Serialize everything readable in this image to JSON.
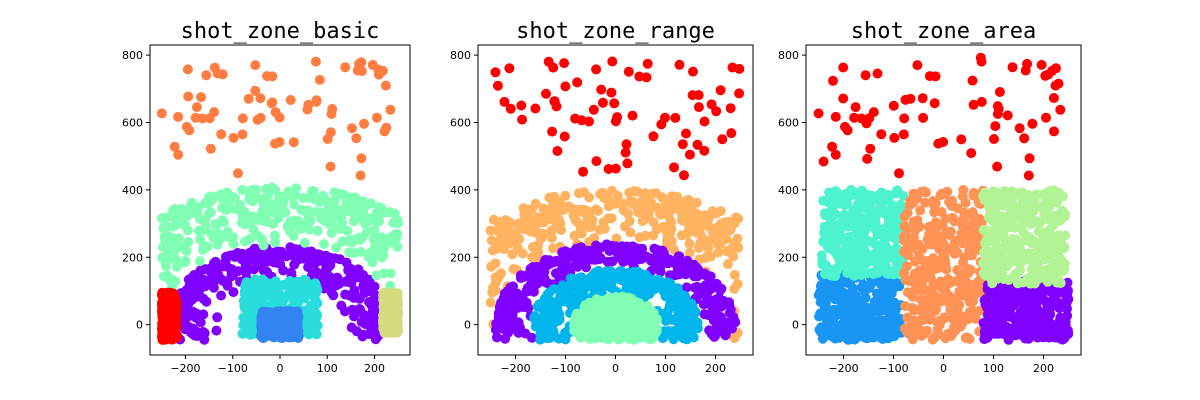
{
  "chart_data": [
    {
      "type": "scatter",
      "title": "shot_zone_basic",
      "xlabel": "",
      "ylabel": "",
      "xlim": [
        -275,
        275
      ],
      "ylim": [
        -90,
        830
      ],
      "xticks": [
        -200,
        -100,
        0,
        100,
        200
      ],
      "yticks": [
        0,
        200,
        400,
        600,
        800
      ],
      "grid": false,
      "series": [
        {
          "color": "#8000ff",
          "region": {
            "shape": "ring",
            "r_min": 130,
            "r_max": 235,
            "y_min": -45
          }
        },
        {
          "color": "#2adddd",
          "region": {
            "shape": "rect",
            "x": [
              -80,
              80
            ],
            "y": [
              -30,
              135
            ]
          }
        },
        {
          "color": "#3384f0",
          "region": {
            "shape": "rect",
            "x": [
              -40,
              40
            ],
            "y": [
              -40,
              40
            ]
          }
        },
        {
          "color": "#80ffb4",
          "region": {
            "shape": "ring",
            "r_min": 230,
            "r_max": 410,
            "y_min": 80
          }
        },
        {
          "color": "#ff0000",
          "region": {
            "shape": "rect",
            "x": [
              -250,
              -218
            ],
            "y": [
              -45,
              95
            ]
          }
        },
        {
          "color": "#d4dc7f",
          "region": {
            "shape": "rect",
            "x": [
              218,
              250
            ],
            "y": [
              -25,
              95
            ]
          }
        },
        {
          "color": "#ff7d41",
          "region": {
            "shape": "ring",
            "r_min": 420,
            "r_max": 800,
            "y_min": 420
          }
        }
      ]
    },
    {
      "type": "scatter",
      "title": "shot_zone_range",
      "xlabel": "",
      "ylabel": "",
      "xlim": [
        -275,
        275
      ],
      "ylim": [
        -90,
        830
      ],
      "xticks": [
        -200,
        -100,
        0,
        100,
        200
      ],
      "yticks": [
        0,
        200,
        400,
        600,
        800
      ],
      "grid": false,
      "series": [
        {
          "color": "#ffb360",
          "region": {
            "shape": "ring",
            "r_min": 235,
            "r_max": 400,
            "y_min": -45
          }
        },
        {
          "color": "#8000ff",
          "region": {
            "shape": "ring",
            "r_min": 165,
            "r_max": 240,
            "y_min": -45
          }
        },
        {
          "color": "#00b5eb",
          "region": {
            "shape": "ring",
            "r_min": 85,
            "r_max": 165,
            "y_min": -45
          }
        },
        {
          "color": "#80ffb4",
          "region": {
            "shape": "ring",
            "r_min": 0,
            "r_max": 85,
            "y_min": -45
          }
        },
        {
          "color": "#ff0000",
          "region": {
            "shape": "ring",
            "r_min": 420,
            "r_max": 800,
            "y_min": 400
          }
        }
      ]
    },
    {
      "type": "scatter",
      "title": "shot_zone_area",
      "xlabel": "",
      "ylabel": "",
      "xlim": [
        -275,
        275
      ],
      "ylim": [
        -90,
        830
      ],
      "xticks": [
        -200,
        -100,
        0,
        100,
        200
      ],
      "yticks": [
        0,
        200,
        400,
        600,
        800
      ],
      "grid": false,
      "series": [
        {
          "color": "#1996f3",
          "region": {
            "shape": "rect",
            "x": [
              -250,
              -85
            ],
            "y": [
              -45,
              150
            ]
          }
        },
        {
          "color": "#4df3ce",
          "region": {
            "shape": "rect",
            "x": [
              -245,
              -80
            ],
            "y": [
              140,
              400
            ]
          }
        },
        {
          "color": "#ff9255",
          "region": {
            "shape": "rect",
            "x": [
              -80,
              80
            ],
            "y": [
              -45,
              400
            ]
          }
        },
        {
          "color": "#8000ff",
          "region": {
            "shape": "rect",
            "x": [
              80,
              250
            ],
            "y": [
              -45,
              130
            ]
          }
        },
        {
          "color": "#b2f396",
          "region": {
            "shape": "rect",
            "x": [
              78,
              245
            ],
            "y": [
              120,
              400
            ]
          }
        },
        {
          "color": "#ff0000",
          "region": {
            "shape": "ring",
            "r_min": 420,
            "r_max": 800,
            "y_min": 400
          }
        }
      ]
    }
  ]
}
